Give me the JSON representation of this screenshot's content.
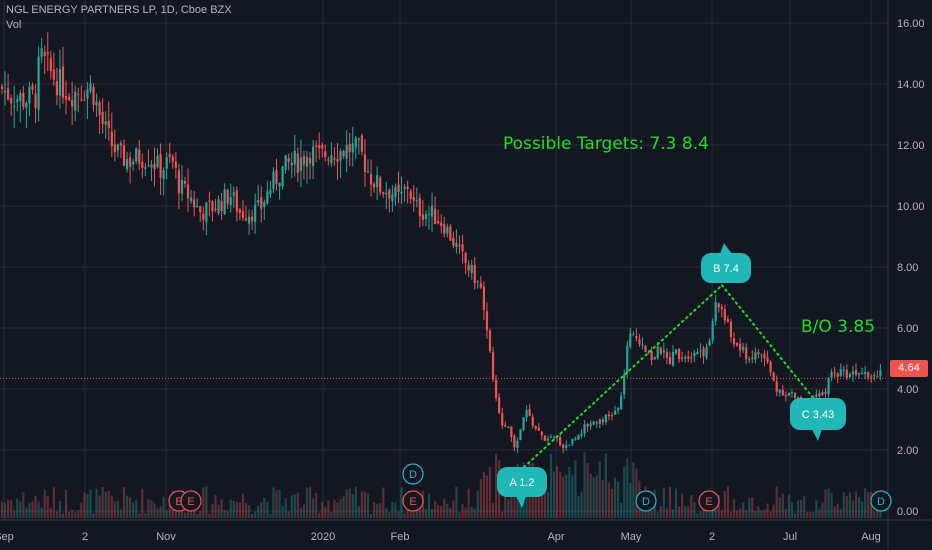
{
  "header": {
    "symbol_line": "NGL ENERGY PARTNERS LP, 1D, Cboe BZX",
    "indicator": "Vol"
  },
  "annotations": {
    "targets": "Possible Targets:  7.3  8.4",
    "breakout": "B/O 3.85"
  },
  "colors": {
    "background": "#131722",
    "grid": "#2a2e39",
    "up": "#26a69a",
    "down": "#ef5350",
    "pattern": "#22dd22",
    "callout": "#1fb8b6",
    "last_price_line": "#ef5350"
  },
  "chart_data": {
    "type": "candlestick",
    "symbol": "NGL ENERGY PARTNERS LP",
    "interval": "1D",
    "exchange": "Cboe BZX",
    "y_axis": {
      "ticks": [
        "16.00",
        "14.00",
        "12.00",
        "10.00",
        "8.00",
        "6.00",
        "4.00",
        "2.00",
        "0.00"
      ],
      "tick_values": [
        16,
        14,
        12,
        10,
        8,
        6,
        4,
        2,
        0
      ],
      "ylim": [
        0,
        16.5
      ]
    },
    "x_axis": {
      "labels": [
        "Sep",
        "2",
        "Nov",
        "2020",
        "Feb",
        "Apr",
        "May",
        "2",
        "Jul",
        "Aug"
      ]
    },
    "last_price": "4.64",
    "price_path": [
      [
        0,
        13.9
      ],
      [
        12,
        13.6
      ],
      [
        24,
        13.5
      ],
      [
        36,
        13.6
      ],
      [
        40,
        14.9
      ],
      [
        50,
        14.4
      ],
      [
        60,
        14.0
      ],
      [
        70,
        13.7
      ],
      [
        80,
        13.8
      ],
      [
        92,
        13.9
      ],
      [
        100,
        12.9
      ],
      [
        110,
        12.1
      ],
      [
        120,
        11.6
      ],
      [
        130,
        11.5
      ],
      [
        140,
        11.6
      ],
      [
        150,
        11.6
      ],
      [
        160,
        11.2
      ],
      [
        172,
        11.5
      ],
      [
        180,
        10.6
      ],
      [
        190,
        10.3
      ],
      [
        200,
        9.8
      ],
      [
        210,
        9.9
      ],
      [
        220,
        10.1
      ],
      [
        230,
        10.4
      ],
      [
        240,
        9.8
      ],
      [
        250,
        9.8
      ],
      [
        260,
        9.9
      ],
      [
        270,
        10.6
      ],
      [
        280,
        11.1
      ],
      [
        290,
        11.4
      ],
      [
        300,
        11.5
      ],
      [
        310,
        11.8
      ],
      [
        320,
        11.6
      ],
      [
        330,
        11.8
      ],
      [
        340,
        11.8
      ],
      [
        350,
        11.9
      ],
      [
        360,
        11.8
      ],
      [
        370,
        11.0
      ],
      [
        380,
        10.6
      ],
      [
        390,
        10.5
      ],
      [
        400,
        10.2
      ],
      [
        408,
        10.7
      ],
      [
        414,
        10.0
      ],
      [
        424,
        9.8
      ],
      [
        434,
        9.7
      ],
      [
        444,
        9.4
      ],
      [
        454,
        8.8
      ],
      [
        464,
        8.2
      ],
      [
        474,
        7.7
      ],
      [
        482,
        7.2
      ],
      [
        487,
        6.1
      ],
      [
        492,
        4.5
      ],
      [
        498,
        3.2
      ],
      [
        504,
        2.8
      ],
      [
        510,
        2.6
      ],
      [
        516,
        2.0
      ],
      [
        520,
        2.6
      ],
      [
        526,
        3.3
      ],
      [
        532,
        2.9
      ],
      [
        540,
        2.5
      ],
      [
        548,
        2.3
      ],
      [
        556,
        2.4
      ],
      [
        564,
        2.1
      ],
      [
        572,
        2.3
      ],
      [
        580,
        2.6
      ],
      [
        590,
        2.9
      ],
      [
        600,
        3.0
      ],
      [
        610,
        3.1
      ],
      [
        620,
        3.4
      ],
      [
        628,
        5.6
      ],
      [
        636,
        5.7
      ],
      [
        644,
        5.5
      ],
      [
        652,
        5.0
      ],
      [
        660,
        5.3
      ],
      [
        668,
        4.9
      ],
      [
        676,
        5.2
      ],
      [
        684,
        5.1
      ],
      [
        692,
        5.2
      ],
      [
        700,
        5.3
      ],
      [
        708,
        5.2
      ],
      [
        714,
        6.6
      ],
      [
        720,
        6.8
      ],
      [
        726,
        6.2
      ],
      [
        732,
        5.6
      ],
      [
        740,
        5.3
      ],
      [
        750,
        5.0
      ],
      [
        760,
        5.2
      ],
      [
        768,
        4.8
      ],
      [
        776,
        4.0
      ],
      [
        784,
        3.9
      ],
      [
        792,
        3.8
      ],
      [
        800,
        3.6
      ],
      [
        808,
        3.6
      ],
      [
        816,
        3.7
      ],
      [
        824,
        3.8
      ],
      [
        830,
        4.4
      ],
      [
        840,
        4.6
      ],
      [
        848,
        4.5
      ],
      [
        856,
        4.6
      ],
      [
        864,
        4.7
      ],
      [
        872,
        4.4
      ],
      [
        882,
        4.64
      ]
    ],
    "pattern": {
      "points": [
        {
          "label": "A 1.2",
          "x": 516,
          "y": 1.2
        },
        {
          "label": "B 7.4",
          "x": 722,
          "y": 7.4
        },
        {
          "label": "C 3.43",
          "x": 820,
          "y": 3.43
        }
      ]
    },
    "events": [
      {
        "label": "E",
        "x": 179,
        "row": "bottom"
      },
      {
        "label": "E",
        "x": 191,
        "row": "bottom"
      },
      {
        "label": "D",
        "x": 413,
        "row": "top"
      },
      {
        "label": "E",
        "x": 413,
        "row": "bottom"
      },
      {
        "label": "D",
        "x": 646,
        "row": "bottom"
      },
      {
        "label": "E",
        "x": 709,
        "row": "bottom"
      },
      {
        "label": "D",
        "x": 881,
        "row": "bottom"
      }
    ]
  }
}
